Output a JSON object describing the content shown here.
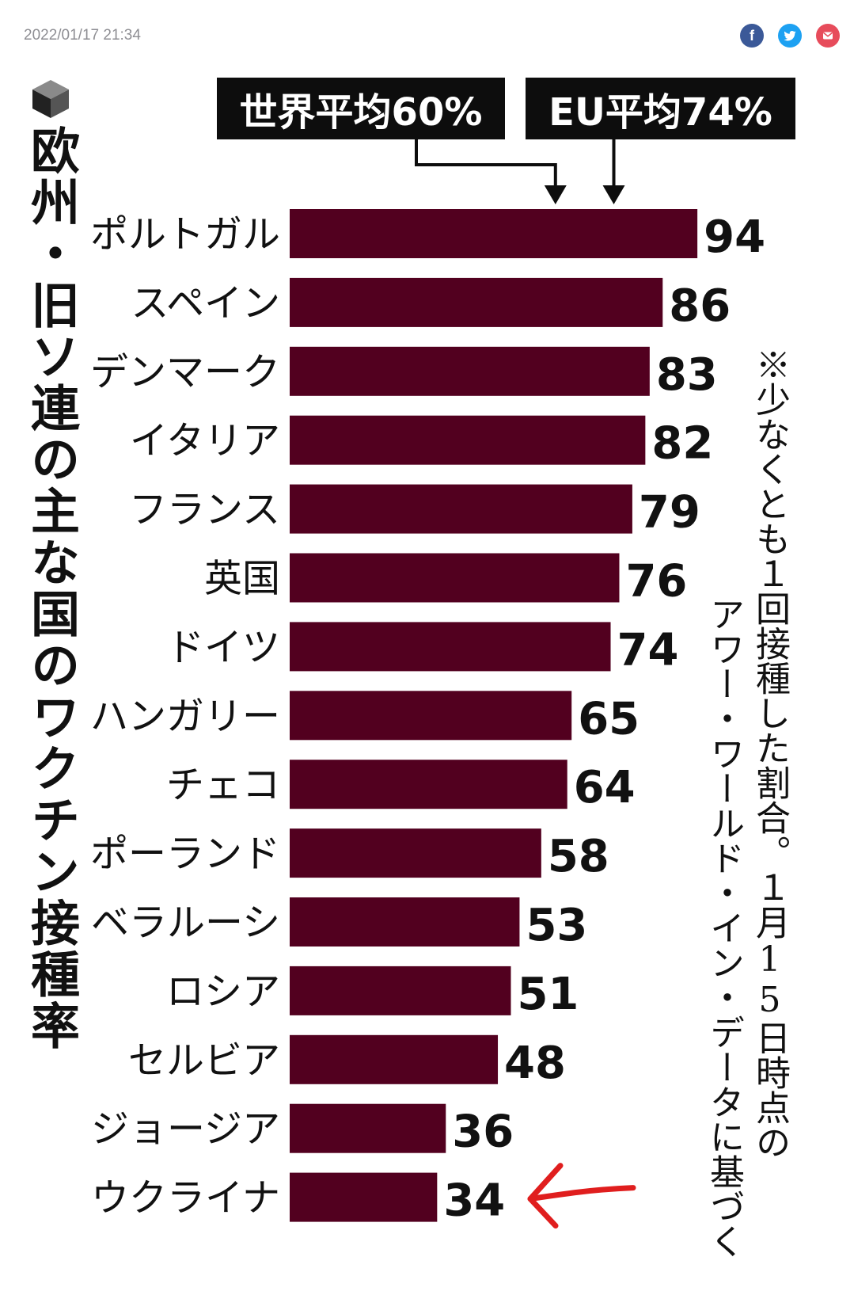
{
  "header": {
    "timestamp": "2022/01/17 21:34",
    "share": {
      "facebook_icon": "facebook-icon",
      "twitter_icon": "twitter-icon",
      "mail_icon": "mail-icon"
    }
  },
  "colors": {
    "bar": "#52001f",
    "box": "#0d0d0d",
    "arrow_red": "#e01e1e"
  },
  "graphic": {
    "title_icon": "cube-icon",
    "title": "欧州・旧ソ連の主な国のワクチン接種率",
    "note_line1": "※少なくとも１回接種した割合。１月15日時点の",
    "note_line2": "アワー・ワールド・イン・データに基づく"
  },
  "chart_data": {
    "type": "bar",
    "orientation": "horizontal",
    "categories": [
      "ポルトガル",
      "スペイン",
      "デンマーク",
      "イタリア",
      "フランス",
      "英国",
      "ドイツ",
      "ハンガリー",
      "チェコ",
      "ポーランド",
      "ベラルーシ",
      "ロシア",
      "セルビア",
      "ジョージア",
      "ウクライナ"
    ],
    "values": [
      94,
      86,
      83,
      82,
      79,
      76,
      74,
      65,
      64,
      58,
      53,
      51,
      48,
      36,
      34
    ],
    "data_labels": [
      "94",
      "86",
      "83",
      "82",
      "79",
      "76",
      "74",
      "65",
      "64",
      "58",
      "53",
      "51",
      "48",
      "36",
      "34"
    ],
    "reference_lines": [
      {
        "label": "世界平均60%",
        "value": 60
      },
      {
        "label": "EU平均74%",
        "value": 74
      }
    ],
    "highlight": {
      "category": "ウクライナ",
      "marker": "red-hand-drawn-arrow"
    },
    "xlim": [
      0,
      100
    ],
    "grid": false,
    "legend": "none"
  }
}
